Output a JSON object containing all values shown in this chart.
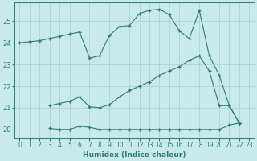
{
  "line1_x": [
    0,
    1,
    2,
    3,
    4,
    5,
    6,
    7,
    8,
    9,
    10,
    11,
    12,
    13,
    14,
    15,
    16,
    17,
    18,
    19,
    20,
    21,
    22
  ],
  "line1_y": [
    24.0,
    24.05,
    24.1,
    24.2,
    24.3,
    24.4,
    24.5,
    23.3,
    23.4,
    24.35,
    24.75,
    24.8,
    25.35,
    25.5,
    25.55,
    25.3,
    24.55,
    24.2,
    25.5,
    23.4,
    22.5,
    21.1,
    20.3
  ],
  "line2_x": [
    3,
    4,
    5,
    6,
    7,
    8,
    9,
    10,
    11,
    12,
    13,
    14,
    15,
    16,
    17,
    18,
    19,
    20,
    21,
    22
  ],
  "line2_y": [
    21.1,
    21.2,
    21.3,
    21.5,
    21.05,
    21.0,
    21.15,
    21.5,
    21.8,
    22.0,
    22.2,
    22.5,
    22.7,
    22.9,
    23.2,
    23.4,
    22.7,
    21.1,
    21.1,
    20.3
  ],
  "line3_x": [
    3,
    4,
    5,
    6,
    7,
    8,
    9,
    10,
    11,
    12,
    13,
    14,
    15,
    16,
    17,
    18,
    19,
    20,
    21,
    22
  ],
  "line3_y": [
    20.05,
    20.0,
    20.0,
    20.15,
    20.1,
    20.0,
    20.0,
    20.0,
    20.0,
    20.0,
    20.0,
    20.0,
    20.0,
    20.0,
    20.0,
    20.0,
    20.0,
    20.0,
    20.2,
    20.3
  ],
  "color": "#2e7d6e",
  "bg_color": "#c8eae8",
  "grid_color": "#aacfcc",
  "xlabel": "Humidex (Indice chaleur)",
  "xlim": [
    -0.5,
    23.5
  ],
  "ylim": [
    19.6,
    25.85
  ],
  "yticks": [
    20,
    21,
    22,
    23,
    24,
    25
  ],
  "xticks": [
    0,
    1,
    2,
    3,
    4,
    5,
    6,
    7,
    8,
    9,
    10,
    11,
    12,
    13,
    14,
    15,
    16,
    17,
    18,
    19,
    20,
    21,
    22,
    23
  ]
}
